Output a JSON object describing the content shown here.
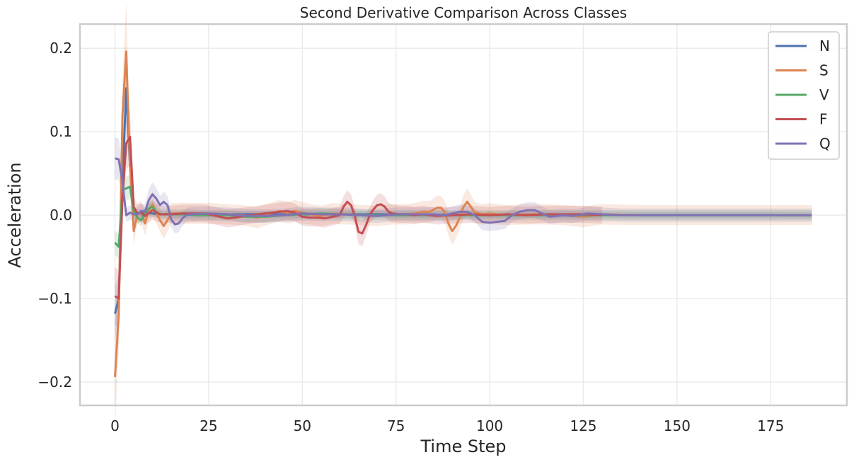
{
  "chart_data": {
    "type": "line",
    "title": "Second Derivative Comparison Across Classes",
    "xlabel": "Time Step",
    "ylabel": "Acceleration",
    "xlim": [
      -9.35,
      195.35
    ],
    "ylim": [
      -0.228,
      0.229
    ],
    "xticks": [
      0,
      25,
      50,
      75,
      100,
      125,
      150,
      175
    ],
    "xtick_labels": [
      "0",
      "25",
      "50",
      "75",
      "100",
      "125",
      "150",
      "175"
    ],
    "yticks": [
      -0.2,
      -0.1,
      0.0,
      0.1,
      0.2
    ],
    "ytick_labels": [
      "−0.2",
      "−0.1",
      "0.0",
      "0.1",
      "0.2"
    ],
    "grid": true,
    "legend_position": "top-right",
    "series": [
      {
        "name": "N",
        "color": "#4c72b0",
        "points": [
          [
            0,
            -0.118
          ],
          [
            1,
            -0.1
          ],
          [
            2,
            0.04
          ],
          [
            3,
            0.152
          ],
          [
            4,
            0.06
          ],
          [
            5,
            0.004
          ],
          [
            6,
            0.002
          ],
          [
            8,
            0.003
          ],
          [
            10,
            0.002
          ],
          [
            12,
            0.001
          ],
          [
            15,
            0.001
          ],
          [
            20,
            0.001
          ],
          [
            30,
            0.001
          ],
          [
            40,
            0.001
          ],
          [
            50,
            0.001
          ],
          [
            60,
            0.001
          ],
          [
            70,
            0.001
          ],
          [
            80,
            0.0005
          ],
          [
            90,
            0.0005
          ],
          [
            100,
            0.0005
          ],
          [
            110,
            0.0005
          ],
          [
            120,
            0.0005
          ],
          [
            130,
            0.0003
          ],
          [
            140,
            0.0002
          ],
          [
            150,
            0.0002
          ],
          [
            160,
            0.0002
          ],
          [
            170,
            0.0002
          ],
          [
            186,
            0
          ]
        ],
        "band": 0.004
      },
      {
        "name": "S",
        "color": "#dd8452",
        "points": [
          [
            0,
            -0.194
          ],
          [
            1,
            -0.12
          ],
          [
            2,
            0.12
          ],
          [
            3,
            0.196
          ],
          [
            4,
            0.06
          ],
          [
            5,
            -0.019
          ],
          [
            6,
            0.002
          ],
          [
            7,
            0.004
          ],
          [
            8,
            -0.01
          ],
          [
            9,
            0.006
          ],
          [
            10,
            0.013
          ],
          [
            11,
            0.004
          ],
          [
            12,
            -0.006
          ],
          [
            13,
            -0.013
          ],
          [
            14,
            -0.006
          ],
          [
            15,
            0.002
          ],
          [
            18,
            0.002
          ],
          [
            22,
            0.002
          ],
          [
            26,
            0.002
          ],
          [
            30,
            0.001
          ],
          [
            34,
            0
          ],
          [
            38,
            -0.003
          ],
          [
            42,
            0.003
          ],
          [
            44,
            0.005
          ],
          [
            46,
            0.003
          ],
          [
            48,
            0.005
          ],
          [
            50,
            0.003
          ],
          [
            52,
            0.001
          ],
          [
            55,
            -0.001
          ],
          [
            58,
            0.002
          ],
          [
            62,
            0.001
          ],
          [
            66,
            0
          ],
          [
            70,
            -0.001
          ],
          [
            74,
            0.001
          ],
          [
            78,
            0.001
          ],
          [
            80,
            0.002
          ],
          [
            82,
            0.004
          ],
          [
            84,
            0.004
          ],
          [
            86,
            0.009
          ],
          [
            87,
            0.009
          ],
          [
            88,
            0.004
          ],
          [
            89,
            -0.01
          ],
          [
            90,
            -0.019
          ],
          [
            91,
            -0.013
          ],
          [
            92,
            -0.003
          ],
          [
            93,
            0.01
          ],
          [
            94,
            0.016
          ],
          [
            95,
            0.01
          ],
          [
            96,
            0.003
          ],
          [
            98,
            0.001
          ],
          [
            100,
            0.002
          ],
          [
            102,
            0.001
          ],
          [
            105,
            0
          ],
          [
            110,
            0.001
          ],
          [
            115,
            0.001
          ],
          [
            120,
            0
          ],
          [
            125,
            -0.002
          ],
          [
            130,
            0.001
          ],
          [
            140,
            0
          ],
          [
            150,
            0
          ],
          [
            160,
            0
          ],
          [
            170,
            0
          ],
          [
            186,
            0
          ]
        ],
        "band": 0.012
      },
      {
        "name": "V",
        "color": "#55a868",
        "points": [
          [
            0,
            -0.033
          ],
          [
            1,
            -0.038
          ],
          [
            2,
            0.03
          ],
          [
            3,
            0.032
          ],
          [
            4,
            0.034
          ],
          [
            5,
            0.005
          ],
          [
            6,
            -0.003
          ],
          [
            7,
            -0.006
          ],
          [
            8,
            0.003
          ],
          [
            9,
            0.008
          ],
          [
            10,
            0.01
          ],
          [
            11,
            0.004
          ],
          [
            12,
            0.001
          ],
          [
            14,
            0.001
          ],
          [
            18,
            0.001
          ],
          [
            22,
            0
          ],
          [
            26,
            0
          ],
          [
            30,
            0
          ],
          [
            35,
            -0.002
          ],
          [
            40,
            -0.002
          ],
          [
            45,
            0
          ],
          [
            50,
            0.001
          ],
          [
            55,
            0.002
          ],
          [
            60,
            0.001
          ],
          [
            70,
            0
          ],
          [
            80,
            0
          ],
          [
            90,
            0
          ],
          [
            100,
            0
          ],
          [
            110,
            0
          ],
          [
            120,
            0
          ],
          [
            130,
            0
          ],
          [
            140,
            0
          ],
          [
            150,
            0
          ],
          [
            160,
            0
          ],
          [
            170,
            0
          ],
          [
            186,
            0
          ]
        ],
        "band": 0.006
      },
      {
        "name": "F",
        "color": "#c44e52",
        "points": [
          [
            0,
            -0.097
          ],
          [
            1,
            -0.1
          ],
          [
            2,
            0.02
          ],
          [
            3,
            0.086
          ],
          [
            4,
            0.094
          ],
          [
            5,
            0.01
          ],
          [
            6,
            0.002
          ],
          [
            7,
            0.003
          ],
          [
            8,
            -0.001
          ],
          [
            10,
            0.006
          ],
          [
            12,
            0.001
          ],
          [
            15,
            0.001
          ],
          [
            18,
            0.002
          ],
          [
            20,
            0.002
          ],
          [
            24,
            0.002
          ],
          [
            28,
            -0.002
          ],
          [
            30,
            -0.004
          ],
          [
            32,
            -0.003
          ],
          [
            36,
            0
          ],
          [
            40,
            0.002
          ],
          [
            44,
            0.004
          ],
          [
            46,
            0.005
          ],
          [
            48,
            0.003
          ],
          [
            50,
            -0.002
          ],
          [
            52,
            -0.003
          ],
          [
            54,
            -0.003
          ],
          [
            56,
            -0.004
          ],
          [
            58,
            -0.002
          ],
          [
            60,
            0
          ],
          [
            61,
            0.01
          ],
          [
            62,
            0.016
          ],
          [
            63,
            0.012
          ],
          [
            64,
            -0.001
          ],
          [
            65,
            -0.02
          ],
          [
            66,
            -0.022
          ],
          [
            67,
            -0.012
          ],
          [
            68,
            0
          ],
          [
            69,
            0.007
          ],
          [
            70,
            0.012
          ],
          [
            71,
            0.013
          ],
          [
            72,
            0.01
          ],
          [
            73,
            0.004
          ],
          [
            74,
            0.002
          ],
          [
            76,
            0.001
          ],
          [
            78,
            0.001
          ],
          [
            80,
            0
          ],
          [
            82,
            0.001
          ],
          [
            84,
            0
          ],
          [
            86,
            -0.001
          ],
          [
            90,
            0
          ],
          [
            95,
            0.001
          ],
          [
            100,
            0
          ],
          [
            105,
            0.001
          ],
          [
            110,
            0
          ],
          [
            115,
            0.001
          ],
          [
            120,
            0.001
          ],
          [
            125,
            0.001
          ],
          [
            130,
            0
          ]
        ],
        "band": 0.01
      },
      {
        "name": "Q",
        "color": "#8172b3",
        "points": [
          [
            0,
            0.068
          ],
          [
            1,
            0.067
          ],
          [
            2,
            0.04
          ],
          [
            3,
            0
          ],
          [
            4,
            0.003
          ],
          [
            5,
            0.001
          ],
          [
            6,
            0.001
          ],
          [
            7,
            0.005
          ],
          [
            8,
            0.004
          ],
          [
            9,
            0.018
          ],
          [
            10,
            0.025
          ],
          [
            11,
            0.02
          ],
          [
            12,
            0.012
          ],
          [
            13,
            0.016
          ],
          [
            14,
            0.012
          ],
          [
            15,
            -0.005
          ],
          [
            16,
            -0.011
          ],
          [
            17,
            -0.01
          ],
          [
            18,
            -0.004
          ],
          [
            19,
            0
          ],
          [
            20,
            0.001
          ],
          [
            25,
            0.002
          ],
          [
            30,
            0.001
          ],
          [
            35,
            -0.001
          ],
          [
            40,
            -0.001
          ],
          [
            45,
            0
          ],
          [
            50,
            0.002
          ],
          [
            55,
            0.001
          ],
          [
            60,
            0.001
          ],
          [
            65,
            0
          ],
          [
            70,
            -0.001
          ],
          [
            75,
            0.001
          ],
          [
            80,
            0.001
          ],
          [
            85,
            0.001
          ],
          [
            88,
            0
          ],
          [
            90,
            0.002
          ],
          [
            92,
            0.004
          ],
          [
            94,
            0.004
          ],
          [
            96,
            0
          ],
          [
            98,
            -0.008
          ],
          [
            100,
            -0.009
          ],
          [
            102,
            -0.008
          ],
          [
            104,
            -0.007
          ],
          [
            106,
            0
          ],
          [
            108,
            0.004
          ],
          [
            110,
            0.006
          ],
          [
            112,
            0.006
          ],
          [
            114,
            0.002
          ],
          [
            116,
            -0.002
          ],
          [
            118,
            -0.001
          ],
          [
            120,
            0
          ],
          [
            122,
            -0.001
          ],
          [
            124,
            0
          ],
          [
            126,
            0.002
          ],
          [
            130,
            0.001
          ],
          [
            135,
            0
          ],
          [
            140,
            0
          ],
          [
            150,
            0
          ],
          [
            160,
            0
          ],
          [
            170,
            0
          ],
          [
            180,
            0
          ],
          [
            186,
            0
          ]
        ],
        "band": 0.008
      }
    ]
  }
}
